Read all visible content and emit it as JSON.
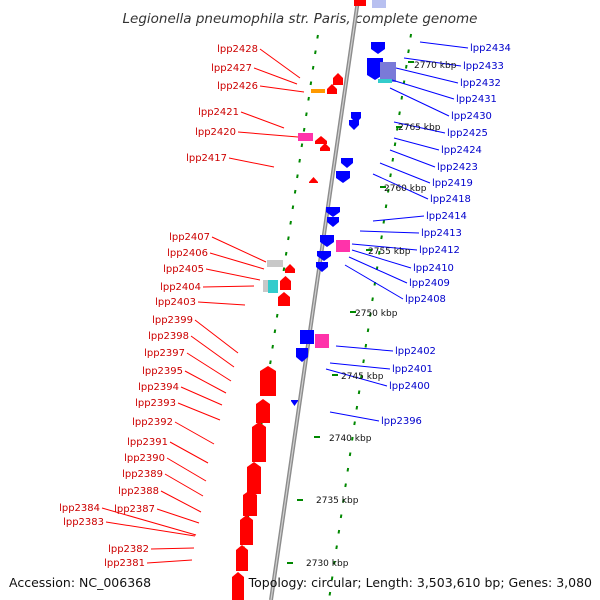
{
  "title": "Legionella pneumophila str. Paris, complete genome",
  "footer": {
    "accession": "Accession: NC_006368",
    "summary": "Topology: circular; Length: 3,503,610 bp; Genes: 3,080"
  },
  "colors": {
    "reverse_strand": "#ff0000",
    "forward_strand": "#0000ff",
    "rrna": "#ff33aa",
    "trna": "#6a8cdb",
    "other": "#ff9900",
    "misc": "#c8c8c8",
    "teal": "#33cccc",
    "backbone": "#9a9a9a",
    "ticks": "#008800"
  },
  "kbp_marks": [
    "2770 kbp",
    "2765 kbp",
    "2760 kbp",
    "2755 kbp",
    "2750 kbp",
    "2745 kbp",
    "2740 kbp",
    "2735 kbp",
    "2730 kbp"
  ],
  "left_labels": [
    "lpp2428",
    "lpp2427",
    "lpp2426",
    "lpp2421",
    "lpp2420",
    "lpp2417",
    "lpp2407",
    "lpp2406",
    "lpp2405",
    "lpp2404",
    "lpp2403",
    "lpp2399",
    "lpp2398",
    "lpp2397",
    "lpp2395",
    "lpp2394",
    "lpp2393",
    "lpp2392",
    "lpp2391",
    "lpp2390",
    "lpp2389",
    "lpp2388",
    "lpp2387",
    "lpp2384",
    "lpp2383",
    "lpp2382",
    "lpp2381"
  ],
  "right_labels": [
    "lpp2434",
    "lpp2433",
    "lpp2432",
    "lpp2431",
    "lpp2430",
    "lpp2425",
    "lpp2424",
    "lpp2423",
    "lpp2419",
    "lpp2418",
    "lpp2414",
    "lpp2413",
    "lpp2412",
    "lpp2410",
    "lpp2409",
    "lpp2408",
    "lpp2402",
    "lpp2401",
    "lpp2400",
    "lpp2396"
  ]
}
